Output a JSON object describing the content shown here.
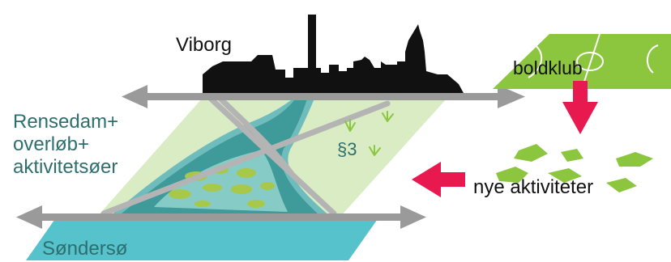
{
  "labels": {
    "city": "Viborg",
    "club": "boldklub",
    "pond": [
      "Rensedam+",
      "overløb+",
      "aktivitetsøer"
    ],
    "protected": "§3",
    "activities": "nye aktiviteter",
    "lake": "Søndersø"
  },
  "colors": {
    "skyline": "#111111",
    "road": "#9a9a9a",
    "field_light": "#d9ecc4",
    "field_green": "#8cc63f",
    "water_dark": "#3f9a9a",
    "water_mid": "#6fbcbc",
    "lake": "#55c2cc",
    "islands": "#a8c84a",
    "arrow_red": "#e8194f",
    "label_teal": "#2e6e6e"
  },
  "icons": [
    "skyline-icon",
    "soccer-field-icon",
    "grass-tuft-icon",
    "arrow-down-icon",
    "arrow-left-icon",
    "island-icon"
  ]
}
